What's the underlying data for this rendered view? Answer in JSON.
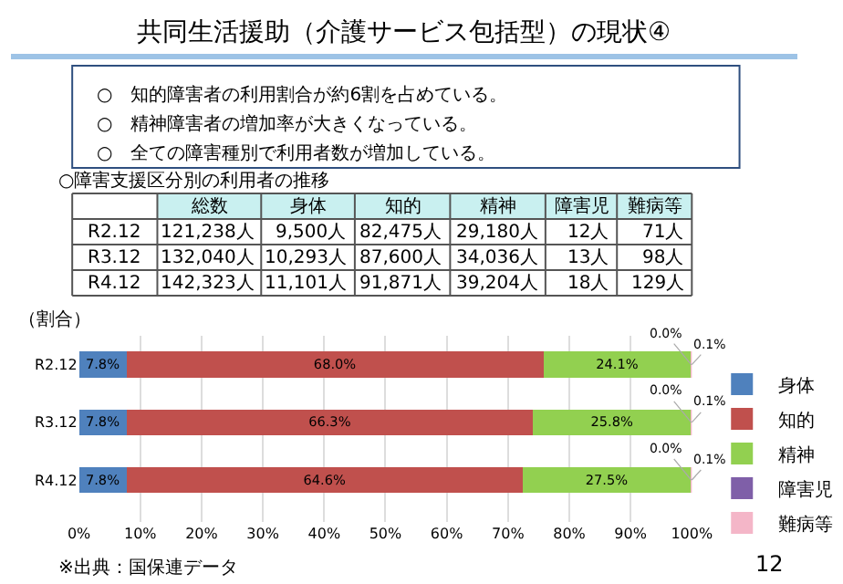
{
  "chart_data": [
    {
      "type": "other",
      "title": "共同生活援助（介護サービス包括型）の現状④",
      "annotations": [
        "○　知的障害者の利用割合が約6割を占めている。",
        "○　精神障害者の増加率が大きくなっている。",
        "○　全ての障害種別で利用者数が増加している。"
      ],
      "subtitle": "○障害支援区分別の利用者の推移",
      "categories": [
        "総数",
        "身体",
        "知的",
        "精神",
        "障害児",
        "難病等"
      ],
      "y_categories": [
        "R2.12",
        "R3.12",
        "R4.12"
      ],
      "cell_labels": [
        [
          "121,238人",
          "9,500人",
          "82,475人",
          "29,180人",
          "12人",
          "71人"
        ],
        [
          "132,040人",
          "10,293人",
          "87,600人",
          "34,036人",
          "13人",
          "98人"
        ],
        [
          "142,323人",
          "11,101人",
          "91,871人",
          "39,204人",
          "18人",
          "129人"
        ]
      ]
    },
    {
      "type": "bar",
      "orientation": "horizontal",
      "stacked": true,
      "ylabel": "（割合）",
      "categories": [
        "R2.12",
        "R3.12",
        "R4.12"
      ],
      "series": [
        {
          "name": "身体",
          "color": "#4f81bd",
          "values": [
            7.8,
            7.8,
            7.8
          ],
          "value_labels": [
            "7.8%",
            "7.8%",
            "7.8%"
          ]
        },
        {
          "name": "知的",
          "color": "#c0504d",
          "values": [
            68.0,
            66.3,
            64.6
          ],
          "value_labels": [
            "68.0%",
            "66.3%",
            "64.6%"
          ]
        },
        {
          "name": "精神",
          "color": "#92d050",
          "values": [
            24.1,
            25.8,
            27.5
          ],
          "value_labels": [
            "24.1%",
            "25.8%",
            "27.5%"
          ]
        },
        {
          "name": "障害児",
          "color": "#7f5fa8",
          "values": [
            0.0,
            0.0,
            0.0
          ],
          "value_labels": [
            "0.0%",
            "0.0%",
            "0.0%"
          ]
        },
        {
          "name": "難病等",
          "color": "#f4b6c8",
          "values": [
            0.1,
            0.1,
            0.1
          ],
          "value_labels": [
            "0.1%",
            "0.1%",
            "0.1%"
          ]
        }
      ],
      "xlim": [
        0,
        100
      ],
      "xticks": [
        {
          "value": 0,
          "label": "0%"
        },
        {
          "value": 10,
          "label": "10%"
        },
        {
          "value": 20,
          "label": "20%"
        },
        {
          "value": 30,
          "label": "30%"
        },
        {
          "value": 40,
          "label": "40%"
        },
        {
          "value": 50,
          "label": "50%"
        },
        {
          "value": 60,
          "label": "60%"
        },
        {
          "value": 70,
          "label": "70%"
        },
        {
          "value": 80,
          "label": "80%"
        },
        {
          "value": 90,
          "label": "90%"
        },
        {
          "value": 100,
          "label": "100%"
        }
      ],
      "grid": "x",
      "legend": "right",
      "annotations": [
        "※出典：国保連データ",
        "12"
      ]
    }
  ]
}
